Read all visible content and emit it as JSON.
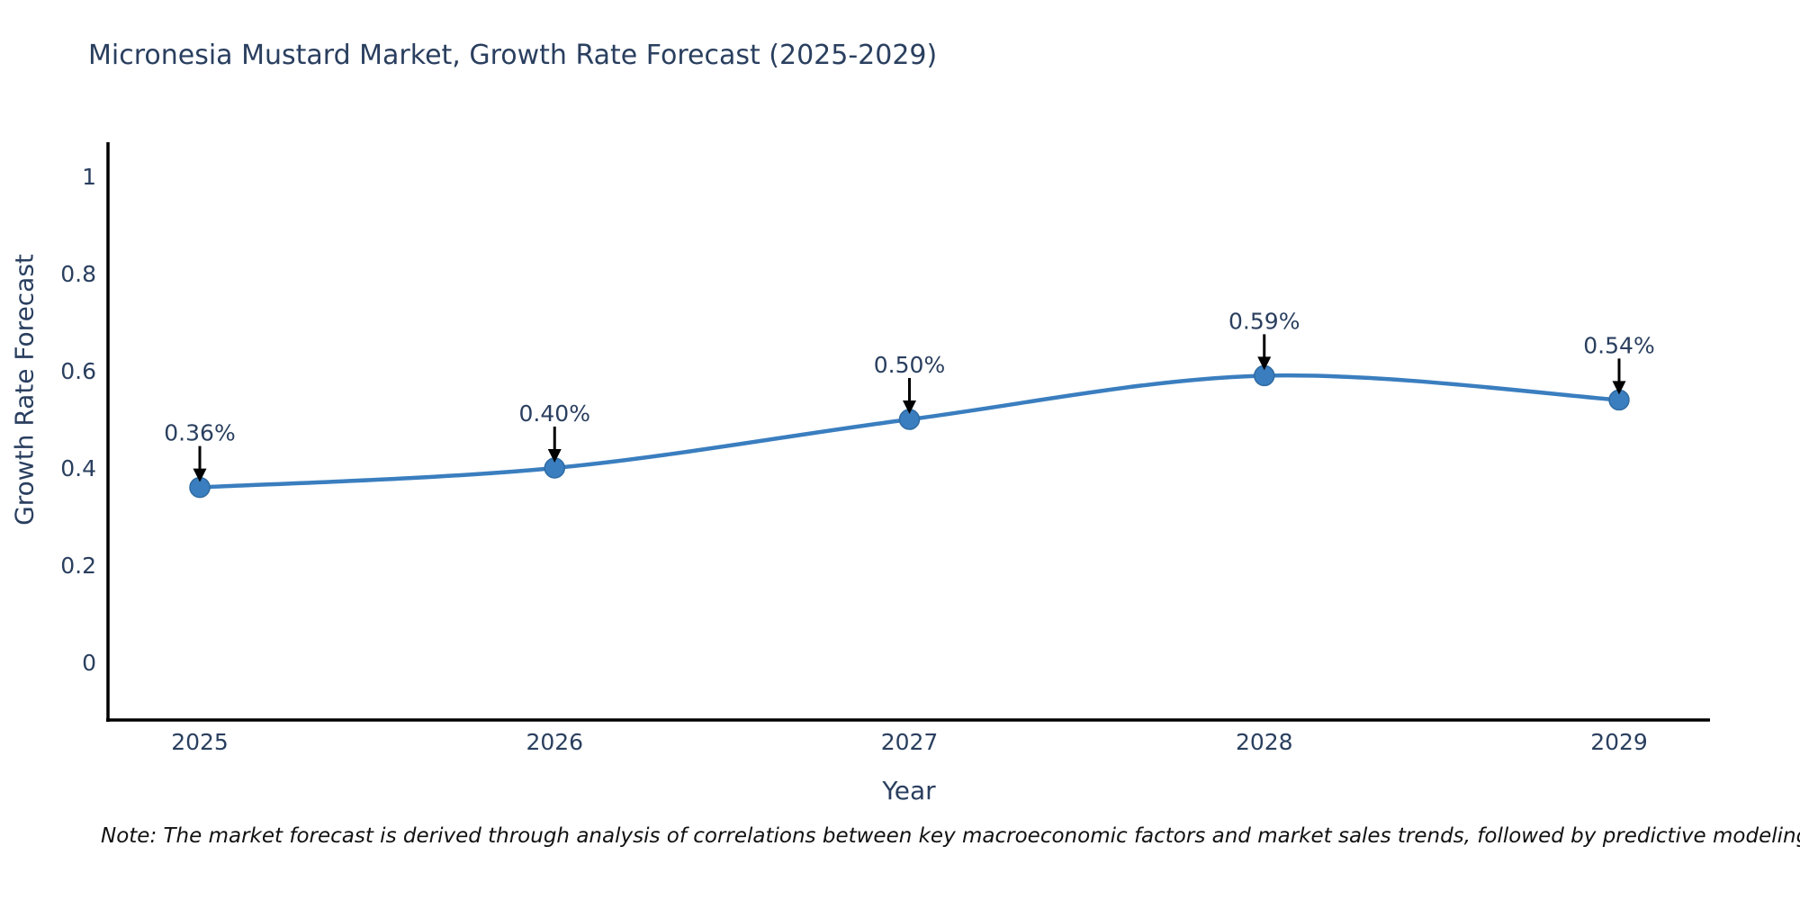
{
  "header": {
    "title": "Micronesia Mustard Market, Growth Rate Forecast (2025-2029)"
  },
  "chart_data": {
    "type": "line",
    "line_shape": "spline",
    "x": [
      2025,
      2026,
      2027,
      2028,
      2029
    ],
    "x_tick_labels": [
      "2025",
      "2026",
      "2027",
      "2028",
      "2029"
    ],
    "series": [
      {
        "name": "Growth Rate Forecast",
        "values": [
          0.36,
          0.4,
          0.5,
          0.59,
          0.54
        ]
      }
    ],
    "point_labels": [
      "0.36%",
      "0.40%",
      "0.50%",
      "0.59%",
      "0.54%"
    ],
    "xlabel": "Year",
    "ylabel": "Growth Rate Forecast",
    "yticks": [
      0,
      0.2,
      0.4,
      0.6,
      0.8,
      1
    ],
    "ytick_labels": [
      "0",
      "0.2",
      "0.4",
      "0.6",
      "0.8",
      "1"
    ],
    "ylim": [
      -0.12,
      1.07
    ],
    "grid": false,
    "legend": "none",
    "colors": {
      "line": "#3a7ebf",
      "marker": "#3a7ebf",
      "marker_edge": "#2f6ba3",
      "axis": "#000000",
      "text": "#2a3f5f",
      "annotation_arrow": "#000000"
    }
  },
  "footer": {
    "note": "Note: The market forecast is derived through analysis of correlations between key macroeconomic factors and market sales trends, followed by predictive modeling to project future sales"
  }
}
